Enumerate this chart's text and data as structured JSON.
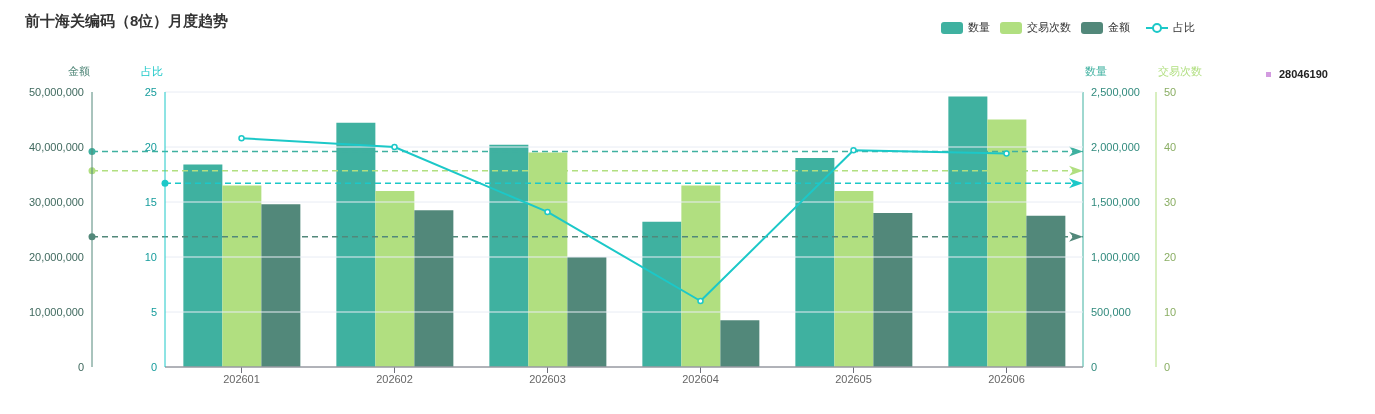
{
  "chart_data": [
    {
      "type": "bar",
      "title": "前十海关编码（8位）月度趋势",
      "categories": [
        "202601",
        "202602",
        "202603",
        "202604",
        "202605",
        "202606"
      ],
      "series": [
        {
          "name": "数量",
          "axis": "y2",
          "color": "#3fb1a0",
          "values": [
            1840000,
            2220000,
            2020000,
            1320000,
            1900000,
            2460000
          ]
        },
        {
          "name": "交易次数",
          "axis": "y3",
          "color": "#b1df80",
          "values": [
            33,
            32,
            39,
            33,
            32,
            45
          ]
        },
        {
          "name": "金额",
          "color": "#52887a",
          "values": [
            29600000,
            28500000,
            20000000,
            8500000,
            28000000,
            27500000
          ]
        }
      ],
      "ylabel": "金额",
      "ylim": [
        0,
        50000000
      ],
      "yticks": [
        {
          "value": 0,
          "label": "0"
        },
        {
          "value": 10000000,
          "label": "10,000,000"
        },
        {
          "value": 20000000,
          "label": "20,000,000"
        },
        {
          "value": 30000000,
          "label": "30,000,000"
        },
        {
          "value": 40000000,
          "label": "40,000,000"
        },
        {
          "value": 50000000,
          "label": "50,000,000"
        }
      ],
      "y2label": "数量",
      "y2lim": [
        0,
        2500000
      ],
      "y2ticks": [
        {
          "value": 0,
          "label": "0"
        },
        {
          "value": 500000,
          "label": "500,000"
        },
        {
          "value": 1000000,
          "label": "1,000,000"
        },
        {
          "value": 1500000,
          "label": "1,500,000"
        },
        {
          "value": 2000000,
          "label": "2,000,000"
        },
        {
          "value": 2500000,
          "label": "2,500,000"
        }
      ],
      "y3label": "交易次数",
      "y3lim": [
        0,
        50
      ],
      "y3ticks": [
        0,
        10,
        20,
        30,
        40,
        50
      ],
      "ref_lines": [
        {
          "axis": "y2",
          "value": 1960000,
          "color": "#3fb1a0",
          "line_style": "dashed"
        },
        {
          "axis": "y3",
          "value": 35.7,
          "color": "#b1df80",
          "line_style": "dashed"
        },
        {
          "axis": "y",
          "value": 23700000,
          "color": "#52887a",
          "line_style": "dashed"
        }
      ],
      "annotations": [
        "28046190"
      ],
      "legend": "top right"
    },
    {
      "type": "line",
      "categories": [
        "202601",
        "202602",
        "202603",
        "202604",
        "202605",
        "202606"
      ],
      "series": [
        {
          "name": "占比",
          "color": "#1cc8c8",
          "values": [
            20.8,
            20.0,
            14.1,
            6.0,
            19.7,
            19.4
          ]
        }
      ],
      "ylabel": "占比",
      "ylim": [
        0,
        25
      ],
      "yticks": [
        0,
        5,
        10,
        15,
        20,
        25
      ],
      "ref_lines": [
        {
          "axis": "y",
          "value": 16.7,
          "color": "#1cc8c8",
          "line_style": "dashed"
        }
      ],
      "tick_labels": "y",
      "marker": "circle",
      "line_style": "solid",
      "grid": "y",
      "legend": "top right"
    }
  ]
}
